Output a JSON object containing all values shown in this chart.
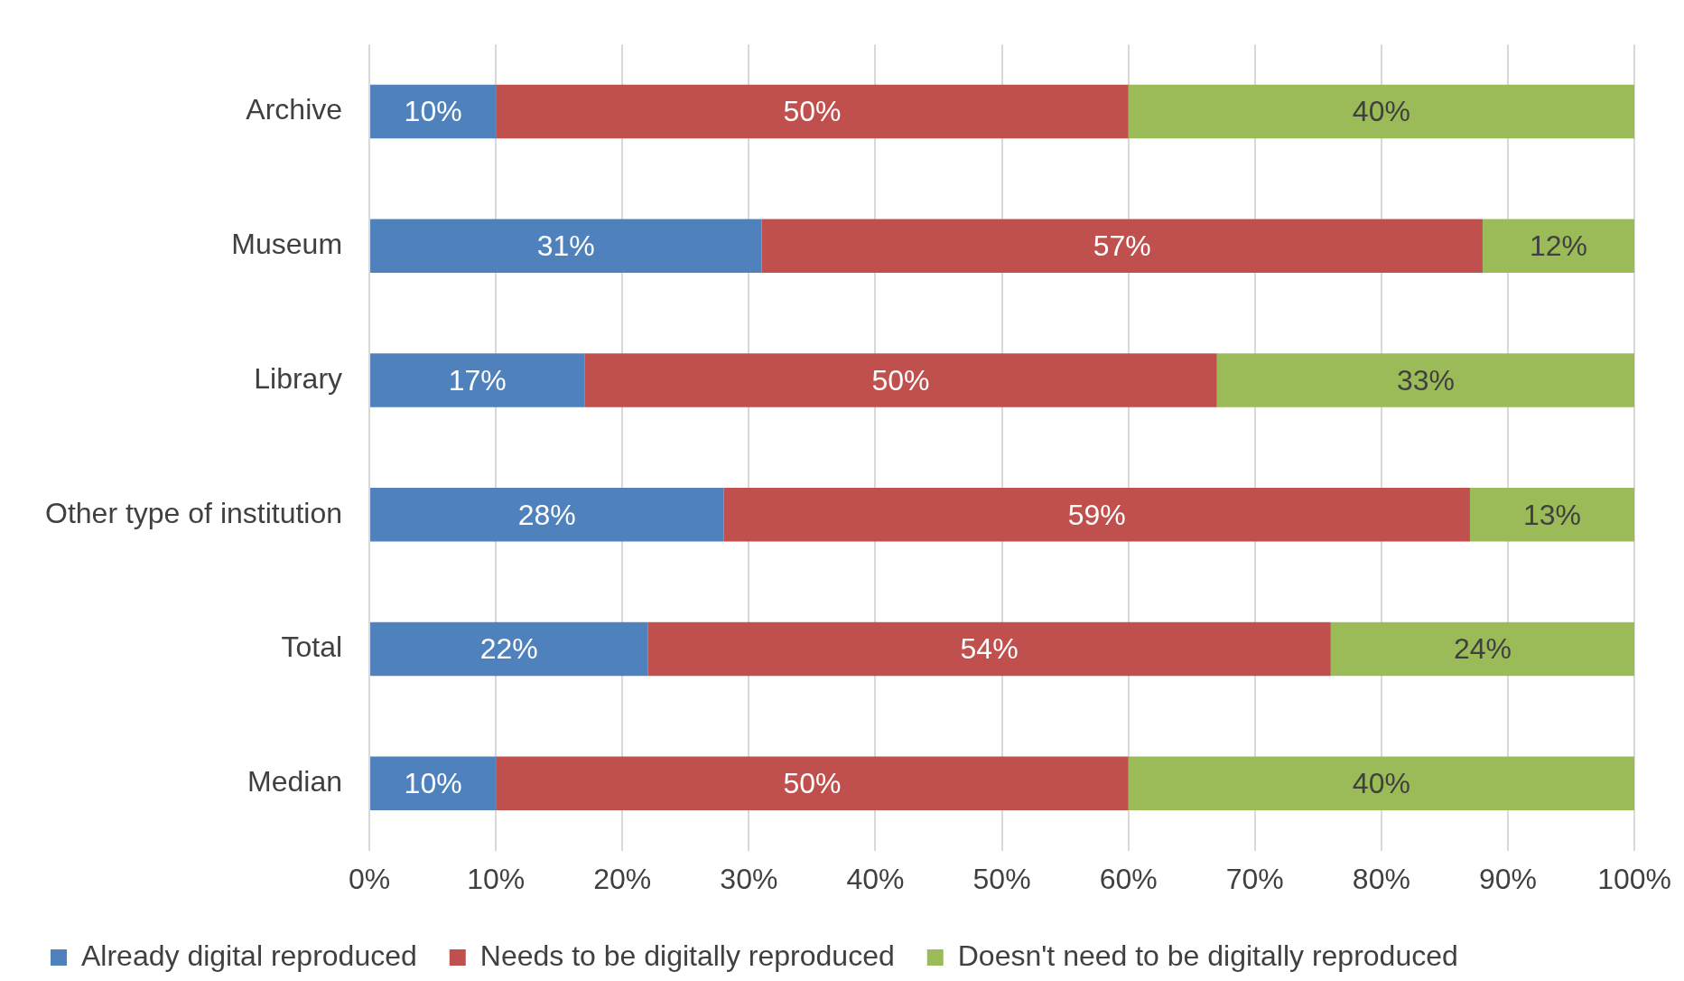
{
  "chart_data": {
    "type": "bar",
    "orientation": "horizontal",
    "stacked": true,
    "categories": [
      "Archive",
      "Museum",
      "Library",
      "Other type of institution",
      "Total",
      "Median"
    ],
    "series": [
      {
        "name": "Already digital reproduced",
        "color": "#4f81bd",
        "values": [
          10,
          31,
          17,
          28,
          22,
          10
        ],
        "value_labels": [
          "10%",
          "31%",
          "17%",
          "28%",
          "22%",
          "10%"
        ]
      },
      {
        "name": "Needs to be digitally reproduced",
        "color": "#c0504d",
        "values": [
          50,
          57,
          50,
          59,
          54,
          50
        ],
        "value_labels": [
          "50%",
          "57%",
          "50%",
          "59%",
          "54%",
          "50%"
        ]
      },
      {
        "name": "Doesn't need to be digitally reproduced",
        "color": "#9bbb59",
        "values": [
          40,
          12,
          33,
          13,
          24,
          40
        ],
        "value_labels": [
          "40%",
          "12%",
          "33%",
          "13%",
          "24%",
          "40%"
        ]
      }
    ],
    "xlim": [
      0,
      100
    ],
    "xticks": [
      {
        "value": 0,
        "label": "0%"
      },
      {
        "value": 10,
        "label": "10%"
      },
      {
        "value": 20,
        "label": "20%"
      },
      {
        "value": 30,
        "label": "30%"
      },
      {
        "value": 40,
        "label": "40%"
      },
      {
        "value": 50,
        "label": "50%"
      },
      {
        "value": 60,
        "label": "60%"
      },
      {
        "value": 70,
        "label": "70%"
      },
      {
        "value": 80,
        "label": "80%"
      },
      {
        "value": 90,
        "label": "90%"
      },
      {
        "value": 100,
        "label": "100%"
      }
    ],
    "grid": "x",
    "legend": "bottom"
  }
}
